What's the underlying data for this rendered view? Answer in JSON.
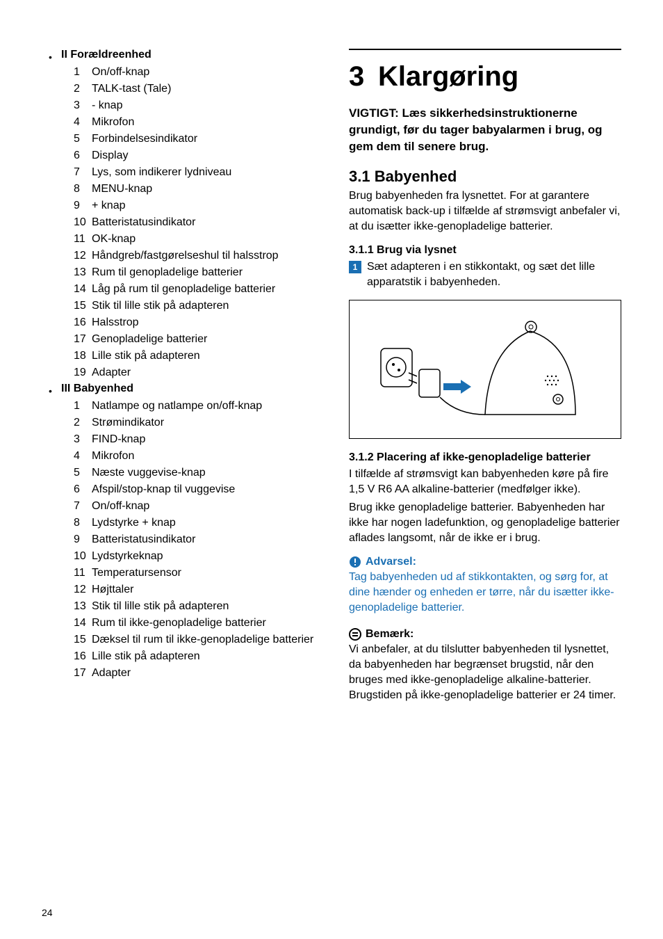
{
  "left": {
    "sectionA": {
      "title": "II Forældreenhed",
      "items": [
        {
          "n": "1",
          "t": "On/off-knap"
        },
        {
          "n": "2",
          "t": "TALK-tast (Tale)"
        },
        {
          "n": "3",
          "t": "- knap"
        },
        {
          "n": "4",
          "t": "Mikrofon"
        },
        {
          "n": "5",
          "t": "Forbindelsesindikator"
        },
        {
          "n": "6",
          "t": "Display"
        },
        {
          "n": "7",
          "t": "Lys, som indikerer lydniveau"
        },
        {
          "n": "8",
          "t": "MENU-knap"
        },
        {
          "n": "9",
          "t": "+ knap"
        },
        {
          "n": "10",
          "t": "Batteristatusindikator"
        },
        {
          "n": "11",
          "t": "OK-knap"
        },
        {
          "n": "12",
          "t": "Håndgreb/fastgørelseshul til halsstrop"
        },
        {
          "n": "13",
          "t": "Rum til genopladelige batterier"
        },
        {
          "n": "14",
          "t": "Låg på rum til genopladelige batterier"
        },
        {
          "n": "15",
          "t": "Stik til lille stik på adapteren"
        },
        {
          "n": "16",
          "t": "Halsstrop"
        },
        {
          "n": "17",
          "t": "Genopladelige batterier"
        },
        {
          "n": "18",
          "t": "Lille stik på adapteren"
        },
        {
          "n": "19",
          "t": "Adapter"
        }
      ]
    },
    "sectionB": {
      "title": "III Babyenhed",
      "items": [
        {
          "n": "1",
          "t": "Natlampe og natlampe on/off-knap"
        },
        {
          "n": "2",
          "t": "Strømindikator"
        },
        {
          "n": "3",
          "t": "FIND-knap"
        },
        {
          "n": "4",
          "t": "Mikrofon"
        },
        {
          "n": "5",
          "t": "Næste vuggevise-knap"
        },
        {
          "n": "6",
          "t": "Afspil/stop-knap til vuggevise"
        },
        {
          "n": "7",
          "t": "On/off-knap"
        },
        {
          "n": "8",
          "t": "Lydstyrke + knap"
        },
        {
          "n": "9",
          "t": "Batteristatusindikator"
        },
        {
          "n": "10",
          "t": "Lydstyrkeknap"
        },
        {
          "n": "11",
          "t": "Temperatursensor"
        },
        {
          "n": "12",
          "t": "Højttaler"
        },
        {
          "n": "13",
          "t": "Stik til lille stik på adapteren"
        },
        {
          "n": "14",
          "t": "Rum til ikke-genopladelige batterier"
        },
        {
          "n": "15",
          "t": "Dæksel til rum til ikke-genopladelige batterier"
        },
        {
          "n": "16",
          "t": "Lille stik på adapteren"
        },
        {
          "n": "17",
          "t": "Adapter"
        }
      ]
    }
  },
  "right": {
    "chapterNum": "3",
    "chapterTitle": "Klargøring",
    "important": "VIGTIGT: Læs sikkerhedsinstruktionerne grundigt, før du tager babyalarmen i brug, og gem dem til senere brug.",
    "h2": "3.1 Babyenhed",
    "p1": "Brug babyenheden fra lysnettet. For at garantere automatisk back-up i tilfælde af strømsvigt anbefaler vi, at du isætter ikke-genopladelige batterier.",
    "h3a": "3.1.1 Brug via lysnet",
    "step1num": "1",
    "step1": "Sæt adapteren i en stikkontakt, og sæt det lille apparatstik i babyenheden.",
    "h3b": "3.1.2 Placering af ikke-genopladelige batterier",
    "p2": " I tilfælde af strømsvigt kan babyenheden køre på fire 1,5 V R6 AA alkaline-batterier (medfølger ikke).",
    "p3": "Brug ikke genopladelige batterier. Babyenheden har ikke har nogen ladefunktion, og genopladelige batterier aflades langsomt, når de ikke er i brug.",
    "warnLabel": "Advarsel:",
    "warnText": "Tag babyenheden ud af stikkontakten, og sørg for, at dine hænder og enheden er tørre, når du isætter ikke-genopladelige batterier.",
    "noteLabel": "Bemærk:",
    "noteText": " Vi anbefaler, at du tilslutter babyenheden til lysnettet, da babyenheden har begrænset brugstid, når den bruges med ikke-genopladelige alkaline-batterier. Brugstiden på ikke-genopladelige batterier er 24 timer."
  },
  "pageNumber": "24",
  "colors": {
    "accent": "#1a6fb3",
    "text": "#000000",
    "bg": "#ffffff"
  }
}
